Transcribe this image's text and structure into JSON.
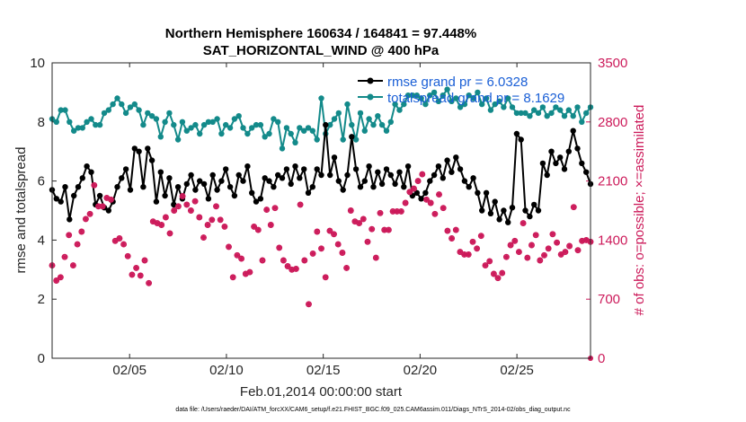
{
  "chart_data": {
    "type": "line",
    "title": [
      "Northern Hemisphere 160634 / 164841 = 97.448%",
      "SAT_HORIZONTAL_WIND @ 400 hPa"
    ],
    "xlabel": "Feb.01,2014 00:00:00 start",
    "ylabel_left": "rmse and totalspread",
    "ylabel_right": "# of obs: o=possible; ×=assimilated",
    "footnote": "data file: /Users/raeder/DAI/ATM_forcXX/CAM6_setup/f.e21.FHIST_BGC.f09_025.CAM6assim.011/Diags_NTrS_2014-02/obs_diag_output.nc",
    "xlim": [
      1,
      28.8
    ],
    "ylim_left": [
      0,
      10
    ],
    "ylim_right": [
      0,
      3500
    ],
    "x_ticks": [
      5,
      10,
      15,
      20,
      25
    ],
    "x_tick_labels": [
      "02/05",
      "02/10",
      "02/15",
      "02/20",
      "02/25"
    ],
    "y_ticks_left": [
      0,
      2,
      4,
      6,
      8,
      10
    ],
    "y_ticks_right": [
      0,
      700,
      1400,
      2100,
      2800,
      3500
    ],
    "colors": {
      "rmse": "#000000",
      "spread": "#138a8a",
      "obs": "#cc1a5a",
      "legend_text": "#1a5fd6",
      "right_axis": "#cc1a5a"
    },
    "legend": [
      {
        "name": "rmse grand pr = 6.0328",
        "series": "rmse"
      },
      {
        "name": "totalspread grand pr = 8.1629",
        "series": "totalspread"
      }
    ],
    "series": [
      {
        "name": "rmse",
        "axis": "left",
        "values": [
          5.7,
          5.4,
          5.3,
          5.8,
          4.7,
          5.5,
          5.8,
          6.1,
          6.5,
          6.3,
          5.2,
          5.5,
          5.1,
          5.0,
          5.3,
          5.8,
          6.1,
          6.4,
          5.7,
          7.1,
          7.0,
          5.8,
          7.1,
          6.7,
          5.3,
          6.3,
          5.5,
          6.1,
          5.2,
          5.8,
          5.4,
          5.9,
          6.2,
          5.7,
          6.0,
          5.9,
          5.4,
          6.2,
          5.7,
          6.0,
          6.4,
          5.8,
          5.5,
          6.2,
          6.0,
          6.5,
          5.6,
          5.3,
          5.4,
          6.1,
          6.0,
          5.8,
          6.2,
          6.1,
          6.4,
          5.9,
          6.5,
          6.1,
          6.4,
          5.6,
          5.8,
          6.4,
          6.2,
          7.9,
          6.2,
          6.8,
          6.0,
          5.7,
          6.2,
          7.5,
          6.4,
          5.8,
          6.0,
          6.5,
          5.8,
          6.3,
          5.9,
          6.4,
          6.2,
          5.9,
          6.3,
          5.8,
          6.5,
          5.5,
          5.6,
          5.4,
          5.6,
          6.0,
          6.2,
          6.5,
          6.1,
          6.7,
          6.3,
          6.8,
          6.4,
          6.0,
          5.8,
          6.1,
          5.6,
          5.0,
          5.6,
          4.9,
          5.3,
          4.7,
          5.0,
          4.6,
          5.1,
          7.6,
          7.4,
          5.0,
          4.8,
          5.2,
          5.0,
          6.6,
          6.2,
          7.0,
          6.6,
          6.8,
          6.4,
          7.0,
          7.7,
          7.1,
          6.6,
          6.3,
          5.9
        ]
      },
      {
        "name": "totalspread",
        "axis": "left",
        "values": [
          8.1,
          8.0,
          8.4,
          8.4,
          8.0,
          7.7,
          7.8,
          7.8,
          8.0,
          8.1,
          7.9,
          7.9,
          8.3,
          8.4,
          8.6,
          8.8,
          8.6,
          8.3,
          8.5,
          8.6,
          8.4,
          7.9,
          8.3,
          8.2,
          8.1,
          7.5,
          8.0,
          8.3,
          7.9,
          7.4,
          8.0,
          7.7,
          7.8,
          7.9,
          7.6,
          7.9,
          8.0,
          8.0,
          8.1,
          7.6,
          7.9,
          7.8,
          8.1,
          8.2,
          7.8,
          7.6,
          7.8,
          7.9,
          7.9,
          7.5,
          7.6,
          8.1,
          8.0,
          7.1,
          7.8,
          7.6,
          7.3,
          7.8,
          7.7,
          7.8,
          7.7,
          7.4,
          8.8,
          7.6,
          7.9,
          8.1,
          8.3,
          7.4,
          8.6,
          7.9,
          7.4,
          8.3,
          7.7,
          8.1,
          7.9,
          8.2,
          7.9,
          7.7,
          8.0,
          8.6,
          8.4,
          8.6,
          8.9,
          8.9,
          8.9,
          8.8,
          8.6,
          8.9,
          9.0,
          8.7,
          8.9,
          9.1,
          8.7,
          8.8,
          8.5,
          8.6,
          8.9,
          8.8,
          9.0,
          8.6,
          8.8,
          8.4,
          8.6,
          8.7,
          8.5,
          8.8,
          8.5,
          8.3,
          8.3,
          8.3,
          8.2,
          8.4,
          8.3,
          8.5,
          8.2,
          8.3,
          8.5,
          8.4,
          8.2,
          8.4,
          8.2,
          8.5,
          8.0,
          8.3,
          8.5
        ]
      },
      {
        "name": "obs possible",
        "axis": "right",
        "marker": "o",
        "values": [
          1100,
          920,
          960,
          1200,
          1460,
          1100,
          1350,
          1500,
          1650,
          1710,
          2050,
          1800,
          1800,
          1900,
          1880,
          1390,
          1420,
          1350,
          1210,
          990,
          1070,
          980,
          1160,
          890,
          1620,
          1600,
          1580,
          1670,
          1480,
          1750,
          1800,
          1920,
          1820,
          1750,
          1860,
          1670,
          1430,
          1580,
          1640,
          1800,
          1640,
          1560,
          1320,
          960,
          1220,
          1180,
          1000,
          1020,
          1560,
          1520,
          1160,
          1760,
          1580,
          1780,
          1310,
          1160,
          1090,
          1050,
          1060,
          1820,
          1160,
          640,
          1240,
          1500,
          1300,
          960,
          1510,
          1470,
          1350,
          1250,
          1070,
          1750,
          1620,
          1600,
          1650,
          1380,
          1530,
          1190,
          1720,
          1520,
          1520,
          1740,
          1740,
          1740,
          1840,
          1970,
          2010,
          2100,
          2180,
          1880,
          1840,
          1710,
          1940,
          1780,
          1510,
          1420,
          1520,
          1260,
          1230,
          1230,
          1380,
          1300,
          1450,
          1100,
          1150,
          1000,
          950,
          1010,
          1200,
          1340,
          1390,
          1260,
          1600,
          1190,
          1340,
          1460,
          1160,
          1220,
          1300,
          1470,
          1370,
          1230,
          1260,
          1330,
          1790,
          1280,
          1390,
          1400,
          1380
        ]
      },
      {
        "name": "obs assimilated",
        "axis": "right",
        "marker": "*",
        "values": [
          1100,
          920,
          960,
          1200,
          1460,
          1100,
          1350,
          1500,
          1650,
          1710,
          2050,
          1800,
          1800,
          1900,
          1880,
          1390,
          1420,
          1350,
          1210,
          990,
          1070,
          980,
          1160,
          890,
          1620,
          1600,
          1580,
          1670,
          1480,
          1750,
          1800,
          1920,
          1820,
          1750,
          1860,
          1670,
          1430,
          1580,
          1640,
          1800,
          1640,
          1560,
          1320,
          960,
          1220,
          1180,
          1000,
          1020,
          1560,
          1520,
          1160,
          1760,
          1580,
          1780,
          1310,
          1160,
          1090,
          1050,
          1060,
          1820,
          1160,
          640,
          1240,
          1500,
          1300,
          960,
          1510,
          1470,
          1350,
          1250,
          1070,
          1750,
          1620,
          1600,
          1650,
          1380,
          1530,
          1190,
          1720,
          1520,
          1520,
          1740,
          1740,
          1740,
          1840,
          1970,
          2010,
          2100,
          2180,
          1880,
          1840,
          1710,
          1940,
          1780,
          1510,
          1420,
          1520,
          1260,
          1230,
          1230,
          1380,
          1300,
          1450,
          1100,
          1150,
          1000,
          950,
          1010,
          1200,
          1340,
          1390,
          1260,
          1600,
          1190,
          1340,
          1460,
          1160,
          1220,
          1300,
          1470,
          1370,
          1230,
          1260,
          1330,
          1790,
          1280,
          1390,
          1400,
          1380
        ]
      }
    ]
  }
}
